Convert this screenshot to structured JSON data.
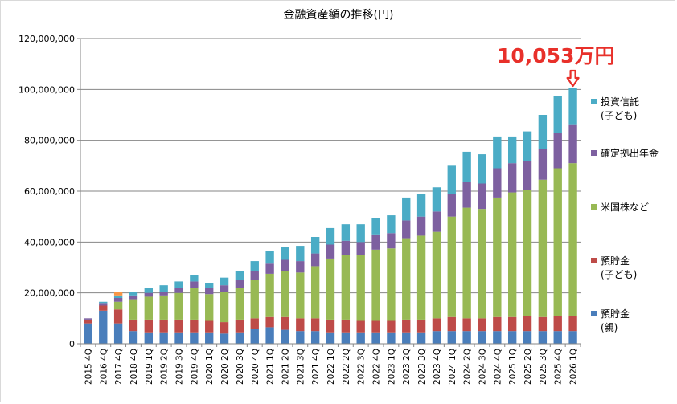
{
  "chart_data": {
    "type": "bar",
    "stacked": true,
    "title": "金融資産額の推移(円)",
    "annotation": "10,053万円",
    "ylim": [
      0,
      120000000
    ],
    "yticks": [
      "0",
      "20,000,000",
      "40,000,000",
      "60,000,000",
      "80,000,000",
      "100,000,000",
      "120,000,000"
    ],
    "ytick_values": [
      0,
      20000000,
      40000000,
      60000000,
      80000000,
      100000000,
      120000000
    ],
    "categories": [
      "2015 4Q",
      "2016 4Q",
      "2017 4Q",
      "2018 4Q",
      "2019 1Q",
      "2019 2Q",
      "2019 3Q",
      "2019 4Q",
      "2020 1Q",
      "2020 2Q",
      "2020 3Q",
      "2020 4Q",
      "2021 1Q",
      "2021 2Q",
      "2021 3Q",
      "2021 4Q",
      "2022 1Q",
      "2022 2Q",
      "2022 3Q",
      "2022 4Q",
      "2023 1Q",
      "2023 2Q",
      "2023 3Q",
      "2023 4Q",
      "2024 1Q",
      "2024 2Q",
      "2024 3Q",
      "2024 4Q",
      "2025 1Q",
      "2025 2Q",
      "2025 3Q",
      "2025 4Q",
      "2026 1Q"
    ],
    "series": [
      {
        "name": "預貯金(親)",
        "color": "#4a7ebb",
        "values": [
          8000000,
          13000000,
          8000000,
          5000000,
          4500000,
          4500000,
          4500000,
          4500000,
          4500000,
          4000000,
          4500000,
          6000000,
          6500000,
          5500000,
          5000000,
          5000000,
          4500000,
          4500000,
          4500000,
          4500000,
          4500000,
          4500000,
          4500000,
          5000000,
          5000000,
          5000000,
          5000000,
          5000000,
          5000000,
          5000000,
          5000000,
          5000000,
          5000000
        ]
      },
      {
        "name": "預貯金(子ども)",
        "color": "#be4b48",
        "values": [
          1500000,
          2000000,
          5500000,
          4500000,
          5000000,
          5000000,
          5000000,
          5000000,
          4500000,
          4500000,
          5000000,
          4000000,
          4000000,
          5000000,
          5000000,
          5000000,
          5000000,
          5000000,
          4500000,
          4500000,
          4500000,
          5000000,
          5000000,
          5000000,
          5500000,
          5000000,
          5000000,
          5500000,
          5500000,
          6000000,
          5500000,
          6000000,
          6000000
        ]
      },
      {
        "name": "米国株など",
        "color": "#98b954",
        "values": [
          0,
          0,
          3000000,
          8000000,
          9000000,
          9500000,
          10500000,
          12500000,
          10500000,
          12000000,
          12500000,
          15000000,
          17000000,
          18000000,
          18000000,
          20500000,
          24000000,
          25500000,
          26000000,
          28000000,
          28500000,
          32000000,
          33000000,
          34000000,
          39500000,
          43500000,
          43000000,
          47000000,
          49000000,
          49500000,
          54000000,
          58000000,
          60000000
        ]
      },
      {
        "name": "確定拠出年金",
        "color": "#7d60a0",
        "values": [
          500000,
          1000000,
          1500000,
          1500000,
          1500000,
          1500000,
          2000000,
          2500000,
          2500000,
          2500000,
          3000000,
          3500000,
          4000000,
          4500000,
          4500000,
          5000000,
          5500000,
          5500000,
          5000000,
          6000000,
          6000000,
          7000000,
          7500000,
          8000000,
          9000000,
          10000000,
          10000000,
          11500000,
          11500000,
          11500000,
          12000000,
          14000000,
          15000000
        ]
      },
      {
        "name": "投資信託(子ども)",
        "color": "#4bacc6",
        "values": [
          0,
          500000,
          1000000,
          1500000,
          2000000,
          2500000,
          2500000,
          2500000,
          2000000,
          3000000,
          3500000,
          4000000,
          5000000,
          5000000,
          6000000,
          6500000,
          6500000,
          6500000,
          7000000,
          6500000,
          7000000,
          9000000,
          9000000,
          9500000,
          11000000,
          12000000,
          11500000,
          12500000,
          10500000,
          11500000,
          13500000,
          14500000,
          14500000
        ]
      }
    ],
    "extra_series": {
      "name": "",
      "color": "#f79646",
      "values": [
        0,
        0,
        1500000,
        0,
        0,
        0,
        0,
        0,
        0,
        0,
        0,
        0,
        0,
        0,
        0,
        0,
        0,
        0,
        0,
        0,
        0,
        0,
        0,
        0,
        0,
        0,
        0,
        0,
        0,
        0,
        0,
        0,
        0
      ]
    },
    "legend": [
      {
        "lines": [
          "投資信託",
          "(子ども)"
        ],
        "color": "#4bacc6"
      },
      {
        "lines": [
          "確定拠出年金"
        ],
        "color": "#7d60a0"
      },
      {
        "lines": [
          "米国株など"
        ],
        "color": "#98b954"
      },
      {
        "lines": [
          "預貯金",
          "(子ども)"
        ],
        "color": "#be4b48"
      },
      {
        "lines": [
          "預貯金",
          "(親)"
        ],
        "color": "#4a7ebb"
      }
    ],
    "annotation_color": "#e8302a",
    "gridline_color": "#868686"
  }
}
